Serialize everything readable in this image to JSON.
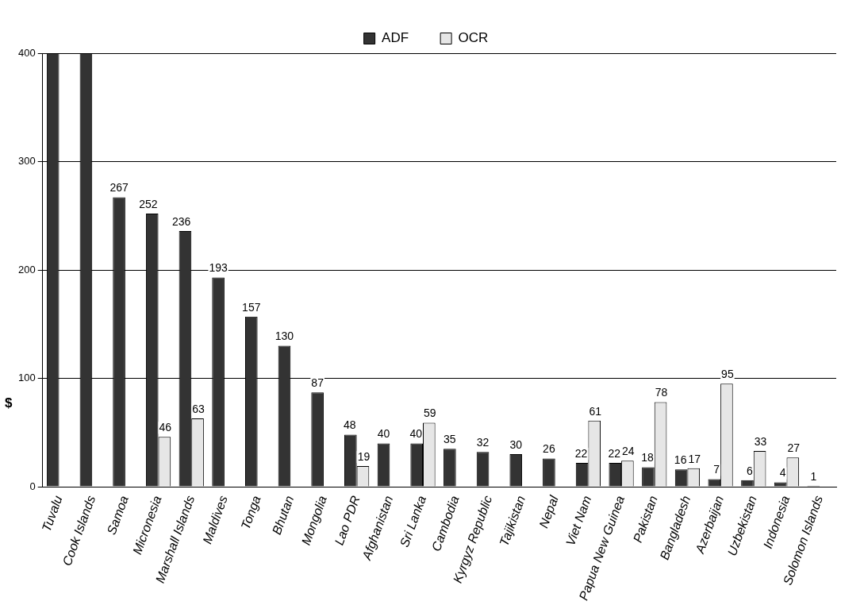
{
  "chart_data": {
    "type": "bar",
    "ylabel": "$",
    "categories": [
      "Tuvalu",
      "Cook Islands",
      "Samoa",
      "Micronesia",
      "Marshall Islands",
      "Maldives",
      "Tonga",
      "Bhutan",
      "Mongolia",
      "Lao PDR",
      "Afghanistan",
      "Sri Lanka",
      "Cambodia",
      "Kyrgyz Republic",
      "Tajikistan",
      "Nepal",
      "Viet Nam",
      "Papua New Guinea",
      "Pakistan",
      "Bangladesh",
      "Azerbaijan",
      "Uzbekistan",
      "Indonesia",
      "Solomon Islands"
    ],
    "series": [
      {
        "name": "ADF",
        "color": "#333333",
        "values": [
          400,
          400,
          267,
          252,
          236,
          193,
          157,
          130,
          87,
          48,
          40,
          40,
          35,
          32,
          30,
          26,
          22,
          22,
          18,
          16,
          7,
          6,
          4,
          1
        ],
        "value_labels": [
          null,
          null,
          "267",
          "252",
          "236",
          "193",
          "157",
          "130",
          "87",
          "48",
          "40",
          "40",
          "35",
          "32",
          "30",
          "26",
          "22",
          "22",
          "18",
          "16",
          "7",
          "6",
          "4",
          "1"
        ]
      },
      {
        "name": "OCR",
        "color": "#e6e6e6",
        "values": [
          null,
          null,
          null,
          46,
          63,
          null,
          null,
          null,
          null,
          19,
          null,
          59,
          null,
          null,
          null,
          null,
          61,
          24,
          78,
          17,
          95,
          33,
          27,
          null
        ],
        "value_labels": [
          null,
          null,
          null,
          "46",
          "63",
          null,
          null,
          null,
          null,
          "19",
          null,
          "59",
          null,
          null,
          null,
          null,
          "61",
          "24",
          "78",
          "17",
          "95",
          "33",
          "27",
          null
        ]
      }
    ],
    "ylim": [
      0,
      400
    ],
    "yticks": [
      0,
      100,
      200,
      300,
      400
    ],
    "grid": "y",
    "legend": "top"
  }
}
